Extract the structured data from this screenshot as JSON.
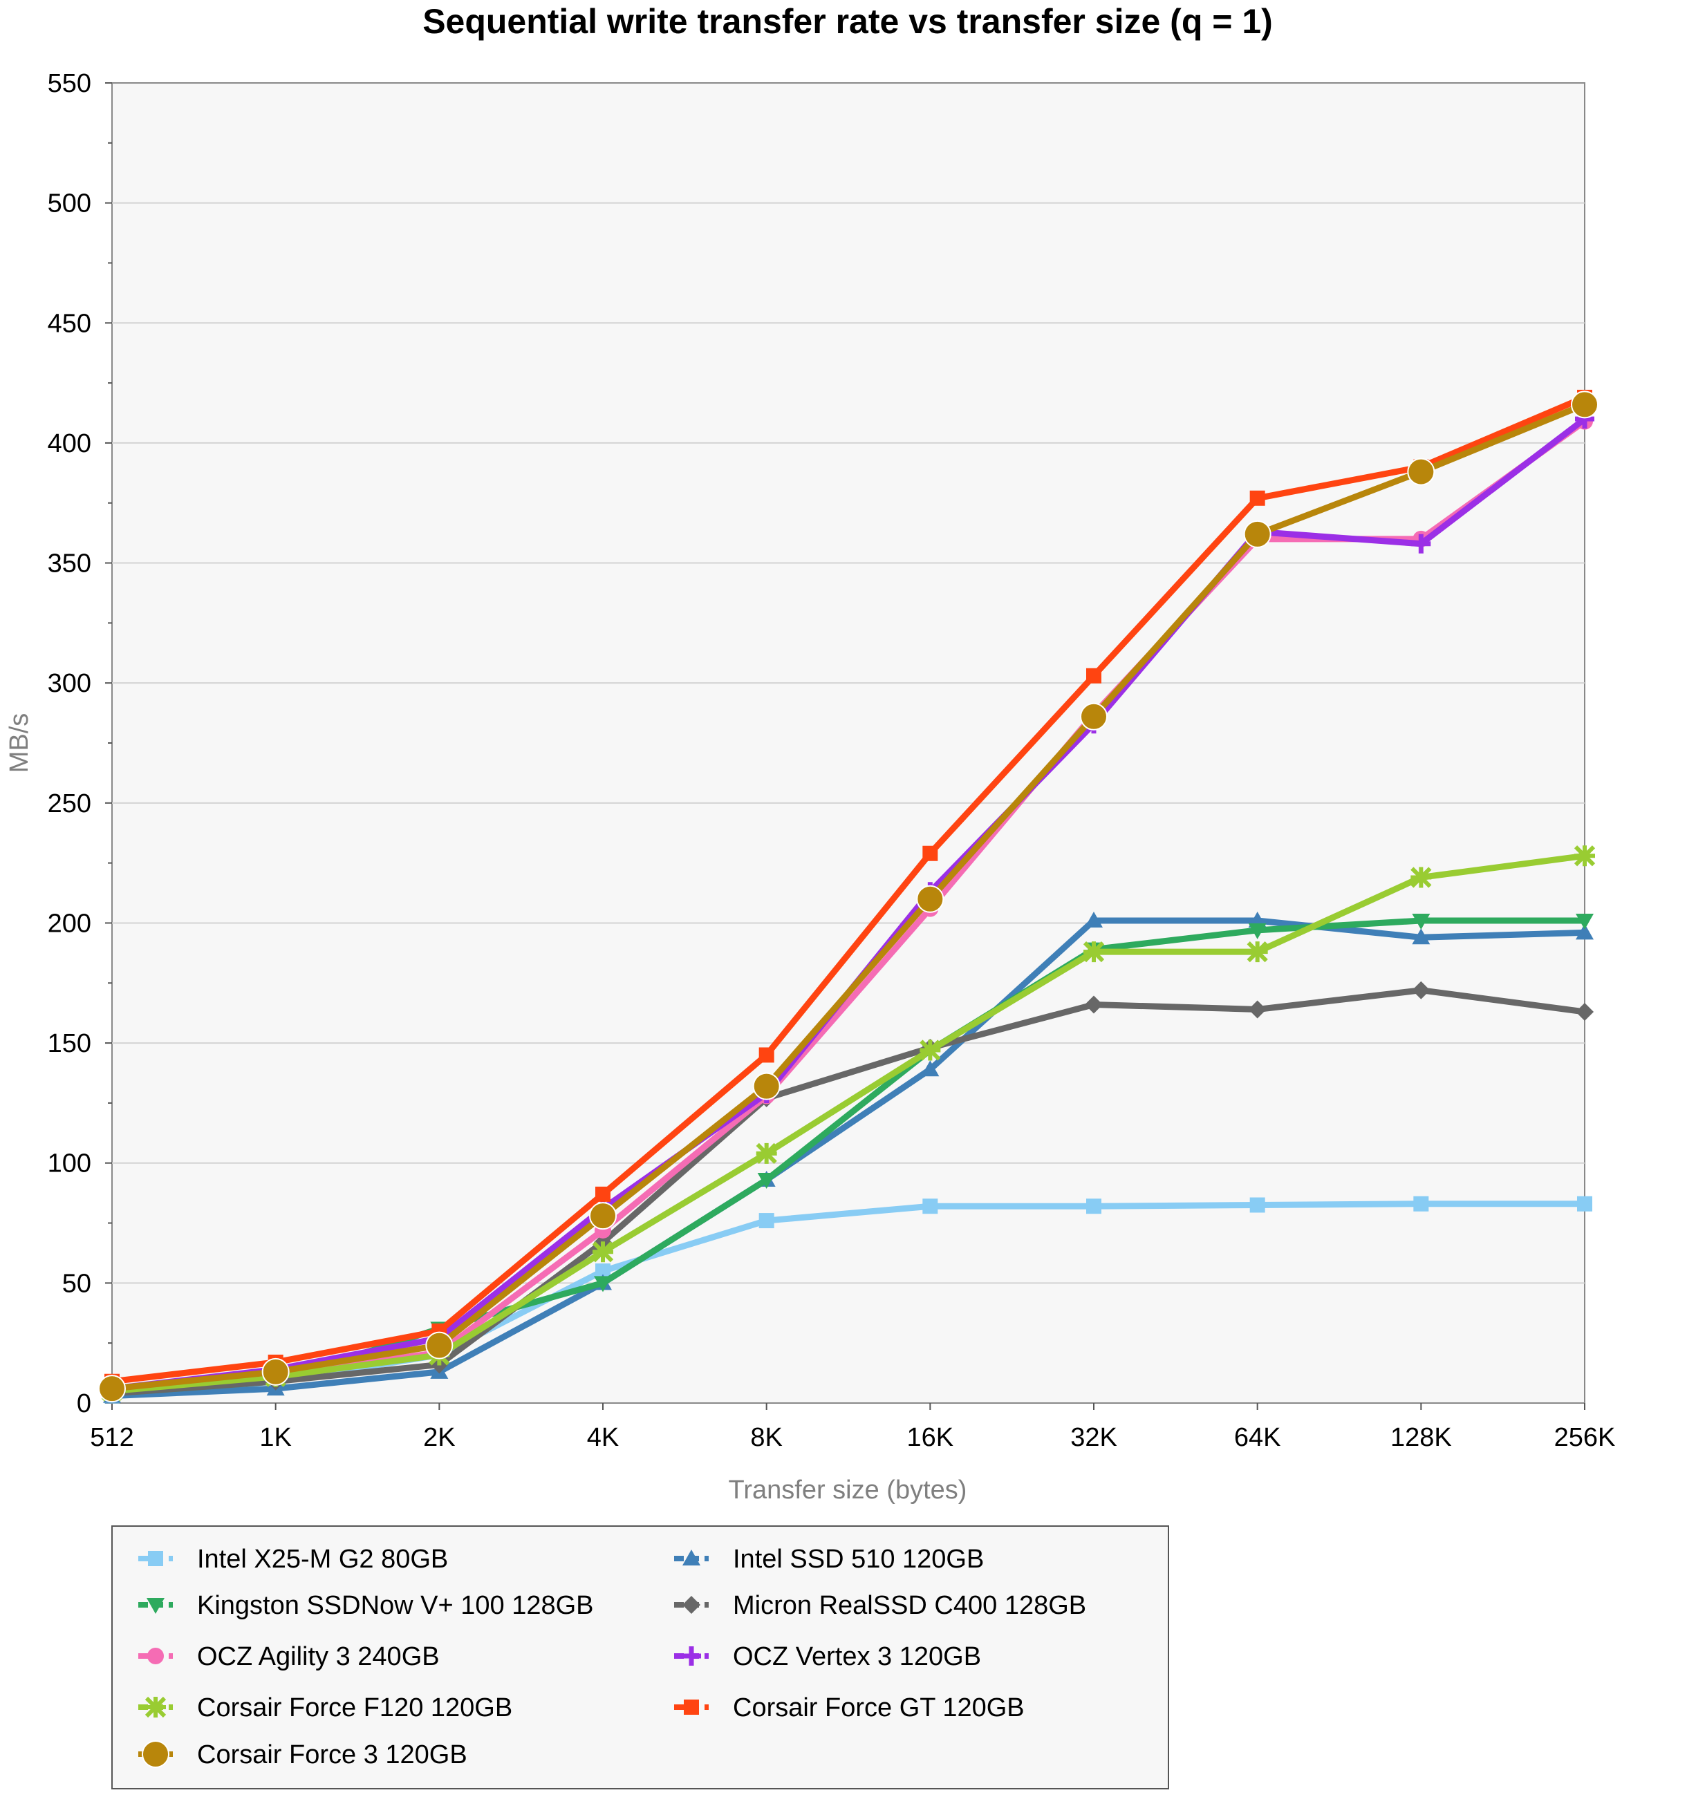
{
  "chart_data": {
    "type": "line",
    "title": "Sequential write transfer rate vs transfer size (q = 1)",
    "xlabel": "Transfer size (bytes)",
    "ylabel": "MB/s",
    "x": [
      "512",
      "1K",
      "2K",
      "4K",
      "8K",
      "16K",
      "32K",
      "64K",
      "128K",
      "256K"
    ],
    "ylim": [
      0,
      550
    ],
    "yticks": [
      0,
      50,
      100,
      150,
      200,
      250,
      300,
      350,
      400,
      450,
      500,
      550
    ],
    "grid": "horizontal",
    "legend_position": "bottom",
    "series": [
      {
        "name": "Intel X25-M G2 80GB",
        "color": "#88ccf4",
        "marker": "square",
        "values": [
          3,
          9,
          20,
          55,
          76,
          82,
          82,
          82.5,
          83,
          83
        ]
      },
      {
        "name": "Intel SSD 510 120GB",
        "color": "#3f7fb7",
        "marker": "triangle-up",
        "values": [
          3,
          6,
          13,
          50,
          93,
          139,
          201,
          201,
          194,
          196
        ]
      },
      {
        "name": "Kingston SSDNow V+ 100 128GB",
        "color": "#2eaa5e",
        "marker": "triangle-down",
        "values": [
          4,
          9,
          31,
          50,
          93,
          147,
          189,
          197,
          201,
          201
        ]
      },
      {
        "name": "Micron RealSSD C400 128GB",
        "color": "#676767",
        "marker": "diamond",
        "values": [
          4,
          9,
          16,
          67,
          127,
          148,
          166,
          164,
          172,
          163
        ]
      },
      {
        "name": "OCZ Agility 3 240GB",
        "color": "#f56cb4",
        "marker": "circle",
        "values": [
          5,
          12,
          21,
          72,
          128,
          206,
          287,
          360,
          360,
          409
        ]
      },
      {
        "name": "OCZ Vertex 3 120GB",
        "color": "#9b2fe6",
        "marker": "plus",
        "values": [
          6,
          14,
          27,
          81,
          129,
          213,
          283,
          363,
          358,
          410
        ]
      },
      {
        "name": "Corsair Force F120 120GB",
        "color": "#99cc32",
        "marker": "x",
        "values": [
          5,
          11,
          20,
          63,
          104,
          147,
          188,
          188,
          219,
          228
        ]
      },
      {
        "name": "Corsair Force GT 120GB",
        "color": "#ff4411",
        "marker": "square",
        "values": [
          9,
          17,
          30,
          87,
          145,
          229,
          303,
          377,
          390,
          419
        ]
      },
      {
        "name": "Corsair Force 3 120GB",
        "color": "#b8860b",
        "marker": "big-circle",
        "values": [
          6,
          13,
          24,
          78,
          132,
          210,
          286,
          362,
          388,
          416
        ]
      }
    ]
  }
}
